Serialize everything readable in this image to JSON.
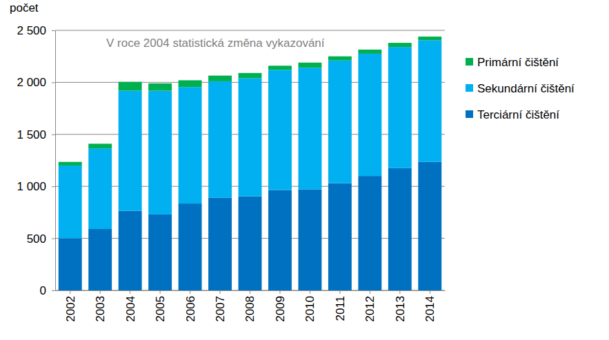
{
  "chart_data": {
    "type": "bar",
    "stacked": true,
    "grid": true,
    "legend": "right",
    "y_label": "počet",
    "annotation": "V roce 2004 statistická změna vykazování",
    "categories": [
      "2002",
      "2003",
      "2004",
      "2005",
      "2006",
      "2007",
      "2008",
      "2009",
      "2010",
      "2011",
      "2012",
      "2013",
      "2014"
    ],
    "series": [
      {
        "name": "Terciární čištění",
        "color": "#0070c0",
        "values": [
          500,
          590,
          765,
          730,
          835,
          890,
          905,
          965,
          970,
          1030,
          1100,
          1175,
          1235
        ]
      },
      {
        "name": "Sekundární čištění",
        "color": "#00b0f0",
        "values": [
          700,
          775,
          1155,
          1190,
          1120,
          1120,
          1135,
          1155,
          1170,
          1180,
          1175,
          1165,
          1170
        ]
      },
      {
        "name": "Primární čištění",
        "color": "#00b050",
        "values": [
          35,
          45,
          85,
          70,
          65,
          55,
          50,
          40,
          50,
          40,
          40,
          40,
          35
        ]
      }
    ],
    "ylim": [
      0,
      2500
    ],
    "yticks": [
      0,
      500,
      {
        "value": 1000,
        "label": "1 000"
      },
      {
        "value": 1500,
        "label": "1 500"
      },
      {
        "value": 2000,
        "label": "2 000"
      },
      {
        "value": 2500,
        "label": "2 500"
      }
    ]
  }
}
